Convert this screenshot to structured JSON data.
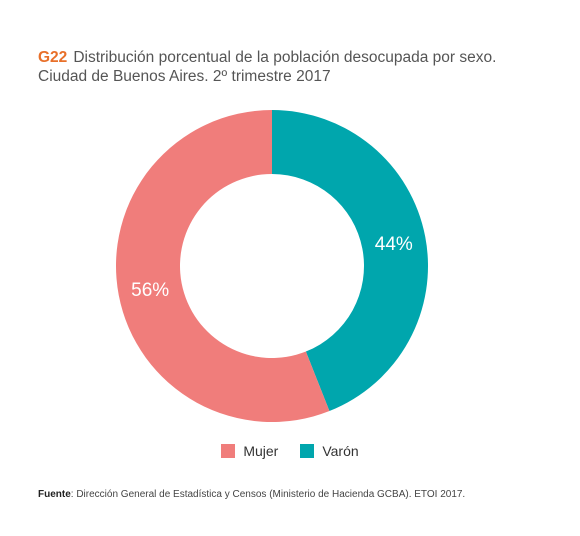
{
  "header": {
    "code": "G22",
    "title_line1": "Distribución porcentual de la población desocupada por sexo.",
    "title_line2": "Ciudad de Buenos Aires. 2º trimestre 2017"
  },
  "chart_data": {
    "type": "pie",
    "variant": "donut",
    "categories": [
      "Varón",
      "Mujer"
    ],
    "values": [
      44,
      56
    ],
    "labels": [
      "44%",
      "56%"
    ],
    "colors": [
      "#00a6ad",
      "#f07d7b"
    ],
    "legend": {
      "placement": "bottom-center",
      "entries": [
        {
          "label": "Mujer",
          "color": "#f07d7b"
        },
        {
          "label": "Varón",
          "color": "#00a6ad"
        }
      ]
    }
  },
  "source": {
    "label": "Fuente",
    "text": ": Dirección General de Estadística y Censos (Ministerio de Hacienda GCBA). ETOI 2017."
  }
}
